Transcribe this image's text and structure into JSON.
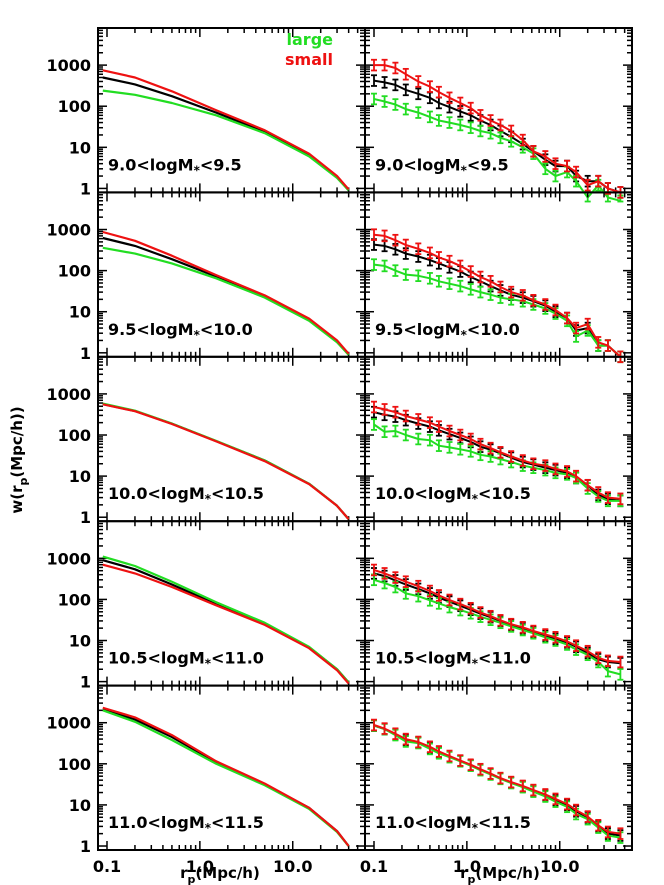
{
  "figure": {
    "ylabel": "w(r",
    "ylabel_sub": "p",
    "ylabel_rest": "(Mpc/h))",
    "xlabel": "r",
    "xlabel_sub": "p",
    "xlabel_rest": "(Mpc/h)",
    "legend": [
      {
        "label": "large",
        "color": "#22dd22"
      },
      {
        "label": "small",
        "color": "#ee1111"
      }
    ],
    "colors": {
      "large": "#22dd22",
      "small": "#ee1111",
      "all": "#000000"
    }
  },
  "chart_data": {
    "type": "line",
    "layout": "5 rows x 2 columns; left column = smooth model curves, right column = measurements with error bars",
    "xscale": "log",
    "yscale": "log",
    "xlim": [
      0.08,
      60
    ],
    "ylim": [
      0.8,
      8000
    ],
    "xticks": [
      0.1,
      1.0,
      10.0
    ],
    "xtick_labels": [
      "0.1",
      "1.0",
      "10.0"
    ],
    "yticks": [
      1,
      10,
      100,
      1000
    ],
    "ytick_labels": [
      "1",
      "10",
      "100",
      "1000"
    ],
    "panels": [
      {
        "label_pre": "9.0<logM",
        "label_sub": "*",
        "label_post": "<9.5",
        "left": {
          "x": [
            0.09,
            0.2,
            0.5,
            1.5,
            5,
            15,
            30,
            40
          ],
          "large": [
            240,
            190,
            120,
            60,
            22,
            6,
            1.8,
            0.9
          ],
          "all": [
            500,
            340,
            175,
            70,
            24,
            6.5,
            1.9,
            0.9
          ],
          "small": [
            750,
            500,
            230,
            80,
            26,
            7,
            2.0,
            0.95
          ]
        },
        "right": {
          "x": [
            0.1,
            0.13,
            0.17,
            0.22,
            0.3,
            0.4,
            0.5,
            0.65,
            0.85,
            1.1,
            1.4,
            1.8,
            2.3,
            3.0,
            4.0,
            5.2,
            7.0,
            9.0,
            12,
            15,
            20,
            26,
            33,
            45
          ],
          "large": [
            150,
            130,
            110,
            85,
            70,
            55,
            45,
            40,
            35,
            30,
            25,
            22,
            17,
            14,
            10,
            7,
            3.0,
            2.0,
            2.5,
            1.5,
            0.6,
            1.2,
            0.6,
            0.5
          ],
          "all": [
            420,
            380,
            330,
            250,
            200,
            160,
            120,
            95,
            75,
            60,
            45,
            35,
            25,
            18,
            12,
            8,
            5,
            3.5,
            3.5,
            2,
            1.5,
            1.5,
            1.0,
            0.8
          ],
          "small": [
            1000,
            1000,
            850,
            600,
            400,
            300,
            220,
            160,
            120,
            90,
            60,
            45,
            35,
            25,
            15,
            8,
            6,
            4,
            3.5,
            2.5,
            1.2,
            1.5,
            1.0,
            0.8
          ]
        }
      },
      {
        "label_pre": "9.5<logM",
        "label_sub": "*",
        "label_post": "<10.0",
        "left": {
          "x": [
            0.09,
            0.2,
            0.5,
            1.5,
            5,
            15,
            30,
            40
          ],
          "large": [
            360,
            260,
            150,
            65,
            22,
            6,
            1.8,
            0.9
          ],
          "all": [
            620,
            400,
            190,
            72,
            24,
            6.5,
            1.9,
            0.9
          ],
          "small": [
            870,
            530,
            230,
            78,
            25,
            6.8,
            2.0,
            0.95
          ]
        },
        "right": {
          "x": [
            0.1,
            0.13,
            0.17,
            0.22,
            0.3,
            0.4,
            0.5,
            0.65,
            0.85,
            1.1,
            1.4,
            1.8,
            2.3,
            3.0,
            4.0,
            5.2,
            7.0,
            9.0,
            12,
            15,
            20,
            26,
            33,
            45
          ],
          "large": [
            140,
            130,
            100,
            80,
            75,
            65,
            55,
            48,
            42,
            35,
            30,
            26,
            22,
            20,
            18,
            15,
            12,
            9,
            6,
            2.5,
            3.5,
            1.5,
            1.5,
            0.8
          ],
          "all": [
            430,
            400,
            330,
            260,
            220,
            180,
            150,
            120,
            95,
            70,
            55,
            42,
            33,
            26,
            22,
            18,
            14,
            10,
            7,
            3.5,
            4,
            1.5,
            1.5,
            0.8
          ],
          "small": [
            750,
            700,
            550,
            420,
            340,
            270,
            210,
            170,
            130,
            95,
            70,
            55,
            40,
            30,
            25,
            19,
            15,
            11,
            7,
            4,
            5,
            1.8,
            1.5,
            0.8
          ]
        }
      },
      {
        "label_pre": "10.0<logM",
        "label_sub": "*",
        "label_post": "<10.5",
        "left": {
          "x": [
            0.09,
            0.2,
            0.5,
            1.5,
            5,
            15,
            30,
            40
          ],
          "large": [
            580,
            390,
            190,
            72,
            24,
            6.5,
            1.9,
            0.9
          ],
          "all": [
            570,
            385,
            188,
            71,
            24,
            6.5,
            1.9,
            0.9
          ],
          "small": [
            560,
            380,
            185,
            70,
            23,
            6.4,
            1.9,
            0.9
          ]
        },
        "right": {
          "x": [
            0.1,
            0.13,
            0.17,
            0.22,
            0.3,
            0.4,
            0.5,
            0.65,
            0.85,
            1.1,
            1.4,
            1.8,
            2.3,
            3.0,
            4.0,
            5.2,
            7.0,
            9.0,
            12,
            15,
            20,
            26,
            33,
            45
          ],
          "large": [
            180,
            120,
            125,
            100,
            80,
            75,
            55,
            50,
            45,
            40,
            33,
            30,
            26,
            22,
            18,
            16,
            14,
            12,
            11,
            9,
            5,
            3.2,
            2.5,
            2.5
          ],
          "all": [
            360,
            310,
            280,
            230,
            190,
            160,
            130,
            105,
            85,
            68,
            52,
            44,
            36,
            28,
            22,
            19,
            16,
            14,
            12,
            9,
            6,
            3.5,
            2.8,
            2.5
          ],
          "small": [
            480,
            420,
            360,
            290,
            240,
            200,
            160,
            125,
            100,
            80,
            60,
            48,
            38,
            30,
            24,
            20,
            18,
            15,
            13,
            10,
            6,
            4,
            3.0,
            2.8
          ]
        }
      },
      {
        "label_pre": "10.5<logM",
        "label_sub": "*",
        "label_post": "<11.0",
        "left": {
          "x": [
            0.09,
            0.2,
            0.5,
            1.5,
            5,
            15,
            30,
            40
          ],
          "large": [
            1100,
            650,
            270,
            85,
            27,
            7,
            2.0,
            0.95
          ],
          "all": [
            900,
            540,
            230,
            78,
            25,
            6.8,
            2.0,
            0.95
          ],
          "small": [
            700,
            430,
            200,
            72,
            24,
            6.5,
            1.9,
            0.9
          ]
        },
        "right": {
          "x": [
            0.1,
            0.13,
            0.17,
            0.22,
            0.3,
            0.4,
            0.5,
            0.65,
            0.85,
            1.1,
            1.4,
            1.8,
            2.3,
            3.0,
            4.0,
            5.2,
            7.0,
            9.0,
            12,
            15,
            20,
            26,
            33,
            45
          ],
          "large": [
            300,
            250,
            200,
            140,
            120,
            95,
            80,
            65,
            55,
            46,
            38,
            32,
            27,
            22,
            18,
            15,
            12,
            10,
            8,
            6,
            4.5,
            3.0,
            1.8,
            1.5
          ],
          "all": [
            430,
            370,
            290,
            230,
            180,
            140,
            110,
            88,
            70,
            56,
            45,
            37,
            30,
            24,
            20,
            16,
            13,
            11,
            9,
            7,
            5,
            3.5,
            3.0,
            2.8
          ],
          "small": [
            520,
            430,
            340,
            270,
            210,
            160,
            125,
            97,
            77,
            61,
            48,
            39,
            31,
            25,
            21,
            17,
            14,
            12,
            9.5,
            7.5,
            5.5,
            3.8,
            3.2,
            3.0
          ]
        }
      },
      {
        "label_pre": "11.0<logM",
        "label_sub": "*",
        "label_post": "<11.5",
        "left": {
          "x": [
            0.09,
            0.2,
            0.5,
            1.5,
            5,
            15,
            30,
            40
          ],
          "large": [
            2000,
            1050,
            380,
            100,
            30,
            8,
            2.2,
            1.0
          ],
          "all": [
            2100,
            1200,
            450,
            110,
            32,
            8.5,
            2.3,
            1.0
          ],
          "small": [
            2300,
            1350,
            500,
            115,
            33,
            8.5,
            2.3,
            1.0
          ]
        },
        "right": {
          "x": [
            0.1,
            0.13,
            0.17,
            0.22,
            0.3,
            0.4,
            0.5,
            0.65,
            0.85,
            1.1,
            1.4,
            1.8,
            2.3,
            3.0,
            4.0,
            5.2,
            7.0,
            9.0,
            12,
            15,
            20,
            26,
            33,
            45
          ],
          "large": [
            850,
            700,
            500,
            350,
            320,
            230,
            180,
            145,
            115,
            90,
            70,
            55,
            43,
            34,
            27,
            21,
            16,
            12,
            9,
            6,
            4.5,
            2.8,
            1.8,
            1.6
          ],
          "all": [
            850,
            700,
            520,
            380,
            330,
            250,
            190,
            150,
            118,
            92,
            72,
            56,
            44,
            35,
            28,
            22,
            17,
            13,
            10,
            7,
            5,
            3.0,
            2.0,
            1.8
          ],
          "small": [
            880,
            720,
            540,
            400,
            340,
            260,
            200,
            155,
            120,
            95,
            74,
            58,
            45,
            36,
            29,
            23,
            18,
            14,
            10.5,
            7.5,
            5.2,
            3.2,
            2.2,
            2.0
          ]
        }
      }
    ]
  }
}
